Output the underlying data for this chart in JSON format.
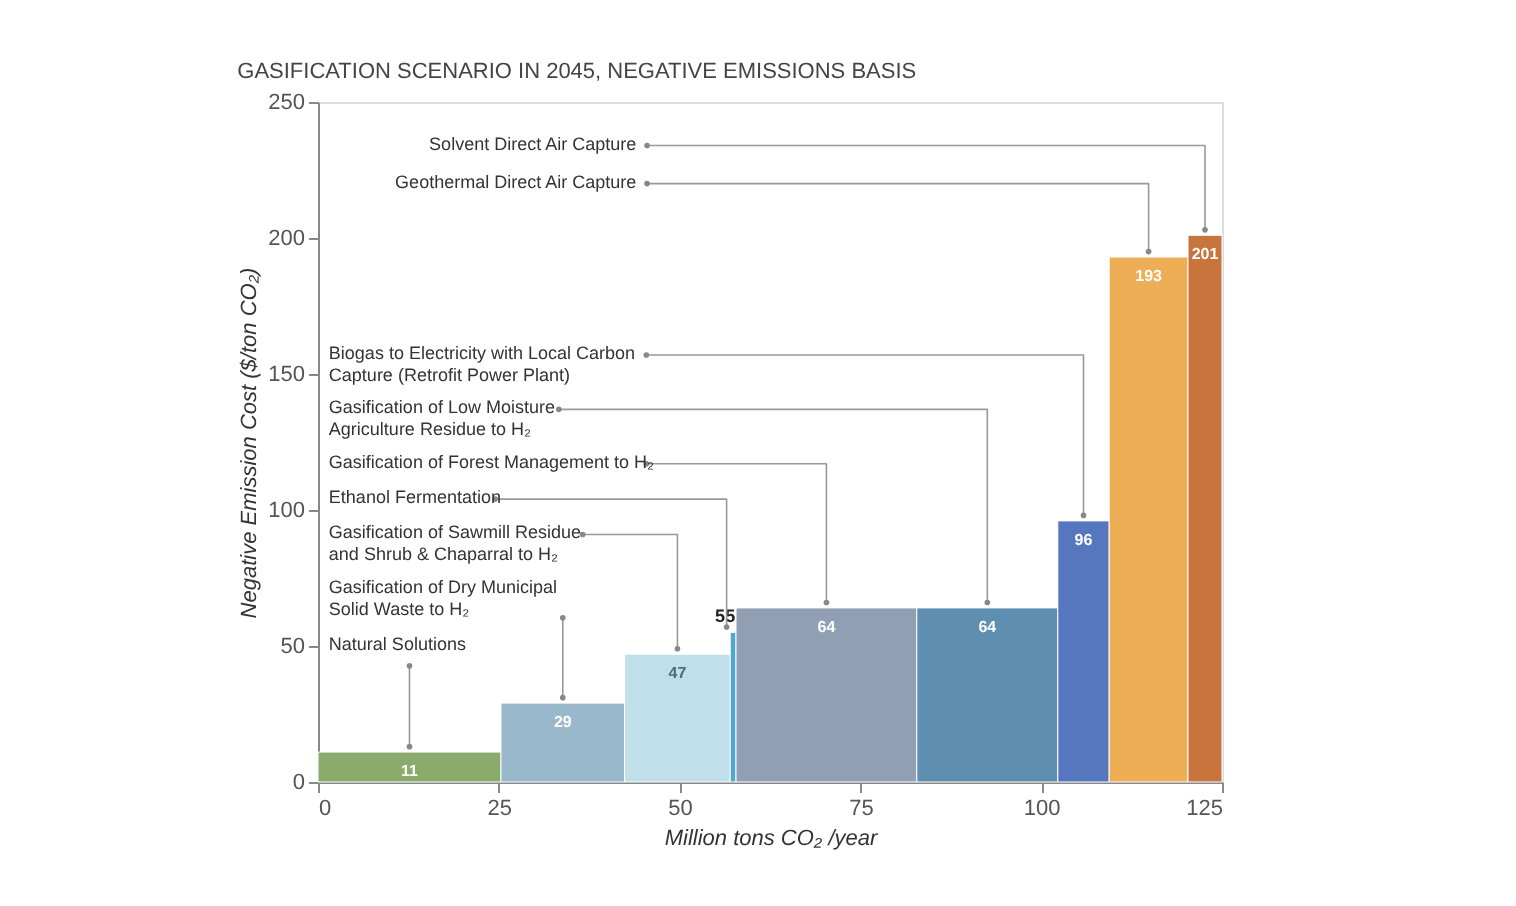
{
  "chart_data": {
    "type": "histogram",
    "title": "GASIFICATION SCENARIO IN 2045, NEGATIVE EMISSIONS BASIS",
    "xlabel": "Million tons CO₂ /year",
    "ylabel": "Negative Emission Cost ($/ton CO₂)",
    "bins": [
      0,
      25.3,
      42.4,
      57.0,
      57.8,
      82.8,
      102.3,
      109.4,
      120.3,
      125
    ],
    "values": [
      11,
      29,
      47,
      55,
      64,
      64,
      96,
      193,
      201
    ],
    "colors": [
      "#8aab6b",
      "#9ab8cc",
      "#c0dfea",
      "#4fa8d2",
      "#909fb4",
      "#5f8fb0",
      "#5677bd",
      "#edae55",
      "#c7753d"
    ],
    "data_labels": true,
    "annotations": [
      {
        "text": "Solvent Direct Air Capture",
        "x": 122.65,
        "y": 201
      },
      {
        "text": "Geothermal Direct Air Capture",
        "x": 114.85,
        "y": 193
      },
      {
        "text": "Biogas to Electricity with Local Carbon\nCapture (Retrofit Power Plant)",
        "x": 105.85,
        "y": 96
      },
      {
        "text": "Gasification of Low Moisture\nAgriculture Residue to H₂",
        "x": 92.55,
        "y": 64
      },
      {
        "text": "Gasification of Forest Management to H₂",
        "x": 70.3,
        "y": 64
      },
      {
        "text": "Ethanol Fermentation",
        "x": 56.5,
        "y": 55
      },
      {
        "text": "Gasification of Sawmill Residue\nand Shrub & Chaparral to H₂",
        "x": 49.7,
        "y": 47
      },
      {
        "text": "Gasification of Dry Municipal\nSolid Waste to H₂",
        "x": 33.85,
        "y": 29
      },
      {
        "text": "Natural Solutions",
        "x": 12.65,
        "y": 11
      }
    ],
    "xlim": [
      0,
      125
    ],
    "xticks": [
      0,
      25,
      50,
      75,
      100,
      125
    ],
    "ylim": [
      0,
      250
    ],
    "yticks": [
      0,
      50,
      100,
      150,
      200,
      250
    ],
    "grid": false,
    "legend": false
  }
}
